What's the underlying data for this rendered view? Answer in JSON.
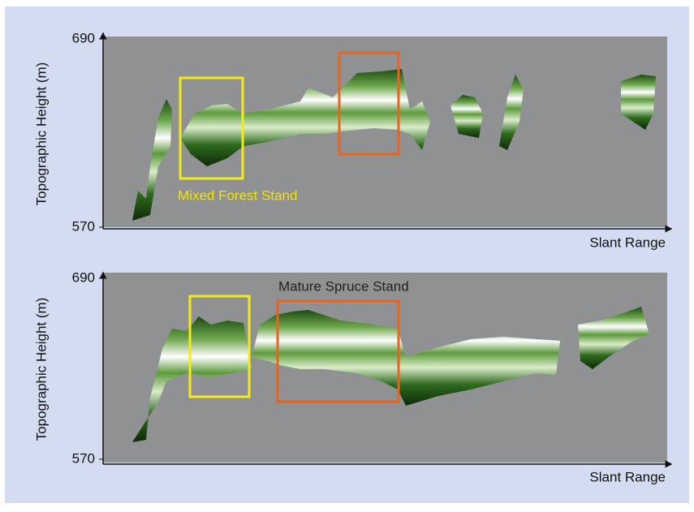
{
  "chart_data": [
    {
      "type": "image",
      "ylabel": "Topographic Height (m)",
      "xlabel": "Slant Range",
      "ylim": [
        570,
        690
      ],
      "yticks": [
        570,
        690
      ],
      "annotation": "Mixed Forest Stand",
      "annotation_color": "#f2e600"
    },
    {
      "type": "image",
      "ylabel": "Topographic Height (m)",
      "xlabel": "Slant Range",
      "ylim": [
        570,
        690
      ],
      "yticks": [
        570,
        690
      ],
      "annotation": "Mature Spruce Stand",
      "annotation_color": "#222222"
    }
  ]
}
